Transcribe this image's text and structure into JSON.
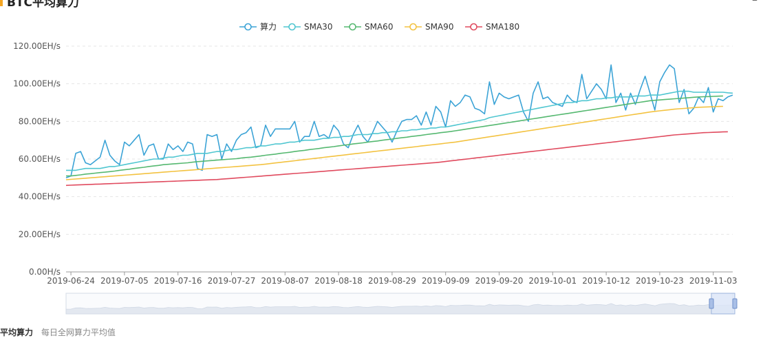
{
  "page": {
    "title": "BTC平均算力",
    "minimize_symbol": "–"
  },
  "footer": {
    "label": "平均算力",
    "description": "每日全网算力平均值"
  },
  "colors": {
    "accent": "#f5a623",
    "grid": "#e6e6e6",
    "axis_text": "#555555",
    "zoom_fill": "#dce6f7",
    "zoom_border": "#9bb3dc"
  },
  "chart_data": {
    "type": "line",
    "title": "",
    "xlabel": "",
    "ylabel": "",
    "ylim": [
      0,
      120
    ],
    "y_ticks": [
      "0.00H/s",
      "20.00EH/s",
      "40.00EH/s",
      "60.00EH/s",
      "80.00EH/s",
      "100.00EH/s",
      "120.00EH/s"
    ],
    "x_tick_labels": [
      "2019-06-24",
      "2019-07-05",
      "2019-07-16",
      "2019-07-27",
      "2019-08-07",
      "2019-08-18",
      "2019-08-29",
      "2019-09-09",
      "2019-09-20",
      "2019-10-01",
      "2019-10-12",
      "2019-10-23",
      "2019-11-03"
    ],
    "x_start": "2019-06-23",
    "legend_position": "top-center",
    "grid": true,
    "series": [
      {
        "name": "算力",
        "color": "#3ba3d6",
        "values": [
          50,
          51,
          63,
          64,
          58,
          57,
          59,
          61,
          70,
          62,
          59,
          57,
          69,
          67,
          70,
          73,
          62,
          67,
          68,
          60,
          60,
          68,
          65,
          67,
          64,
          69,
          68,
          55,
          54,
          73,
          72,
          73,
          60,
          68,
          64,
          70,
          73,
          74,
          77,
          66,
          67,
          78,
          72,
          76,
          76,
          76,
          76,
          80,
          69,
          72,
          72,
          80,
          72,
          73,
          71,
          78,
          75,
          68,
          66,
          73,
          78,
          72,
          69,
          74,
          80,
          77,
          74,
          69,
          75,
          80,
          81,
          81,
          83,
          78,
          85,
          78,
          88,
          85,
          77,
          91,
          88,
          90,
          94,
          93,
          87,
          86,
          84,
          101,
          89,
          95,
          93,
          92,
          93,
          94,
          85,
          80,
          95,
          101,
          92,
          93,
          90,
          89,
          88,
          94,
          91,
          90,
          105,
          92,
          96,
          100,
          97,
          92,
          110,
          90,
          95,
          86,
          95,
          89,
          97,
          104,
          95,
          86,
          101,
          106,
          110,
          108,
          90,
          97,
          84,
          87,
          93,
          90,
          98,
          85,
          92,
          91,
          93,
          94
        ]
      },
      {
        "name": "SMA30",
        "color": "#4fc6d0",
        "values": [
          54,
          54,
          54,
          54.5,
          55,
          55,
          55,
          55,
          55.5,
          56,
          56,
          56.5,
          57,
          57.5,
          58,
          58.5,
          59,
          59.5,
          60,
          60,
          60.5,
          61,
          61,
          61.5,
          62,
          62,
          62.5,
          63,
          63,
          63,
          63.5,
          64,
          64,
          64.5,
          65,
          65,
          65.5,
          66,
          66,
          66.5,
          67,
          67,
          67.5,
          68,
          68,
          68.5,
          69,
          69,
          69.5,
          70,
          70,
          70,
          70.5,
          71,
          71,
          71.5,
          71.5,
          72,
          72,
          72.5,
          73,
          73,
          73,
          73.5,
          73.5,
          74,
          74,
          74.5,
          74.5,
          75,
          75,
          75.5,
          75.5,
          76,
          76,
          76.5,
          76.5,
          77,
          77,
          77.5,
          78,
          78.5,
          79,
          79.5,
          80,
          80.5,
          81,
          82,
          82.5,
          83,
          83.5,
          84,
          84.5,
          85,
          85.5,
          86,
          86.5,
          87,
          87.5,
          88,
          88.5,
          89,
          89.5,
          90,
          90,
          90.5,
          91,
          91,
          91.5,
          92,
          92,
          92.5,
          92.5,
          93,
          93,
          93,
          93,
          93.5,
          93.5,
          93.5,
          94,
          94,
          94,
          94.5,
          95,
          95.5,
          96,
          96,
          96,
          95.5,
          95.5,
          95.5,
          95.5,
          95.5,
          95.5,
          95.5,
          95.2,
          95
        ]
      },
      {
        "name": "SMA60",
        "color": "#55b870",
        "values": [
          51,
          51,
          51.3,
          51.6,
          52,
          52.2,
          52.5,
          52.8,
          53,
          53.3,
          53.6,
          54,
          54.3,
          54.6,
          55,
          55.3,
          55.6,
          56,
          56.3,
          56.6,
          57,
          57.2,
          57.4,
          57.6,
          57.8,
          58,
          58.3,
          58.6,
          58.8,
          59,
          59.2,
          59.4,
          59.6,
          59.8,
          60,
          60.2,
          60.5,
          60.8,
          61,
          61.3,
          61.6,
          62,
          62.3,
          62.6,
          63,
          63.3,
          63.6,
          64,
          64.3,
          64.6,
          65,
          65.3,
          65.6,
          66,
          66.3,
          66.6,
          67,
          67.3,
          67.6,
          68,
          68.3,
          68.6,
          69,
          69.3,
          69.6,
          70,
          70.3,
          70.6,
          71,
          71.3,
          71.6,
          72,
          72.3,
          72.6,
          73,
          73.3,
          73.6,
          74,
          74.3,
          74.6,
          75,
          75.4,
          75.8,
          76.2,
          76.6,
          77,
          77.4,
          77.8,
          78.2,
          78.6,
          79,
          79.4,
          79.8,
          80.2,
          80.6,
          81,
          81.4,
          81.8,
          82.2,
          82.6,
          83,
          83.4,
          83.8,
          84.2,
          84.6,
          85,
          85.4,
          85.8,
          86.2,
          86.6,
          87,
          87.4,
          87.8,
          88.2,
          88.6,
          89,
          89.4,
          89.8,
          90.2,
          90.6,
          91,
          91.2,
          91.4,
          91.6,
          91.8,
          92,
          92.2,
          92.4,
          92.6,
          92.8,
          93,
          93.1,
          93.2,
          93.3,
          93.4,
          93.5
        ]
      },
      {
        "name": "SMA90",
        "color": "#f3c240",
        "values": [
          49,
          49.2,
          49.4,
          49.6,
          49.8,
          50,
          50.2,
          50.4,
          50.6,
          50.8,
          51,
          51.2,
          51.4,
          51.6,
          51.8,
          52,
          52.2,
          52.4,
          52.6,
          52.8,
          53,
          53.2,
          53.4,
          53.6,
          53.8,
          54,
          54.2,
          54.4,
          54.6,
          54.8,
          55,
          55.2,
          55.4,
          55.6,
          55.8,
          56,
          56.2,
          56.4,
          56.6,
          56.8,
          57,
          57.3,
          57.6,
          57.9,
          58.2,
          58.5,
          58.8,
          59.1,
          59.4,
          59.7,
          60,
          60.3,
          60.6,
          60.9,
          61.2,
          61.5,
          61.8,
          62.1,
          62.4,
          62.7,
          63,
          63.3,
          63.6,
          63.9,
          64.2,
          64.5,
          64.8,
          65.1,
          65.4,
          65.7,
          66,
          66.3,
          66.6,
          66.9,
          67.2,
          67.5,
          67.8,
          68.1,
          68.4,
          68.7,
          69,
          69.4,
          69.8,
          70.2,
          70.6,
          71,
          71.4,
          71.8,
          72.2,
          72.6,
          73,
          73.4,
          73.8,
          74.2,
          74.6,
          75,
          75.4,
          75.8,
          76.2,
          76.6,
          77,
          77.4,
          77.8,
          78.2,
          78.6,
          79,
          79.4,
          79.8,
          80.2,
          80.6,
          81,
          81.4,
          81.8,
          82.2,
          82.6,
          83,
          83.4,
          83.8,
          84.2,
          84.6,
          85,
          85.3,
          85.6,
          85.9,
          86.2,
          86.5,
          86.7,
          86.9,
          87.1,
          87.3,
          87.5,
          87.6,
          87.7,
          87.8,
          87.9,
          88
        ]
      },
      {
        "name": "SMA180",
        "color": "#e04a5e",
        "values": [
          46,
          46.1,
          46.2,
          46.3,
          46.4,
          46.5,
          46.6,
          46.7,
          46.8,
          46.9,
          47,
          47.1,
          47.2,
          47.3,
          47.4,
          47.5,
          47.6,
          47.7,
          47.8,
          47.9,
          48,
          48.1,
          48.2,
          48.3,
          48.4,
          48.5,
          48.6,
          48.7,
          48.8,
          48.9,
          49,
          49.1,
          49.3,
          49.5,
          49.7,
          49.9,
          50.1,
          50.3,
          50.5,
          50.7,
          50.9,
          51.1,
          51.3,
          51.5,
          51.7,
          51.9,
          52.1,
          52.3,
          52.5,
          52.7,
          52.9,
          53.1,
          53.3,
          53.5,
          53.7,
          53.9,
          54.1,
          54.3,
          54.5,
          54.7,
          54.9,
          55.1,
          55.3,
          55.5,
          55.7,
          55.9,
          56.1,
          56.3,
          56.5,
          56.7,
          56.9,
          57.1,
          57.3,
          57.5,
          57.7,
          57.9,
          58.1,
          58.4,
          58.7,
          59,
          59.3,
          59.6,
          59.9,
          60.2,
          60.5,
          60.8,
          61.1,
          61.4,
          61.7,
          62,
          62.3,
          62.6,
          62.9,
          63.2,
          63.5,
          63.8,
          64.1,
          64.4,
          64.7,
          65,
          65.3,
          65.6,
          65.9,
          66.2,
          66.5,
          66.8,
          67.1,
          67.4,
          67.7,
          68,
          68.3,
          68.6,
          68.9,
          69.2,
          69.5,
          69.8,
          70.1,
          70.4,
          70.7,
          71,
          71.3,
          71.6,
          71.9,
          72.2,
          72.5,
          72.8,
          73,
          73.2,
          73.4,
          73.6,
          73.8,
          74,
          74.1,
          74.2,
          74.3,
          74.4,
          74.5
        ]
      }
    ]
  }
}
